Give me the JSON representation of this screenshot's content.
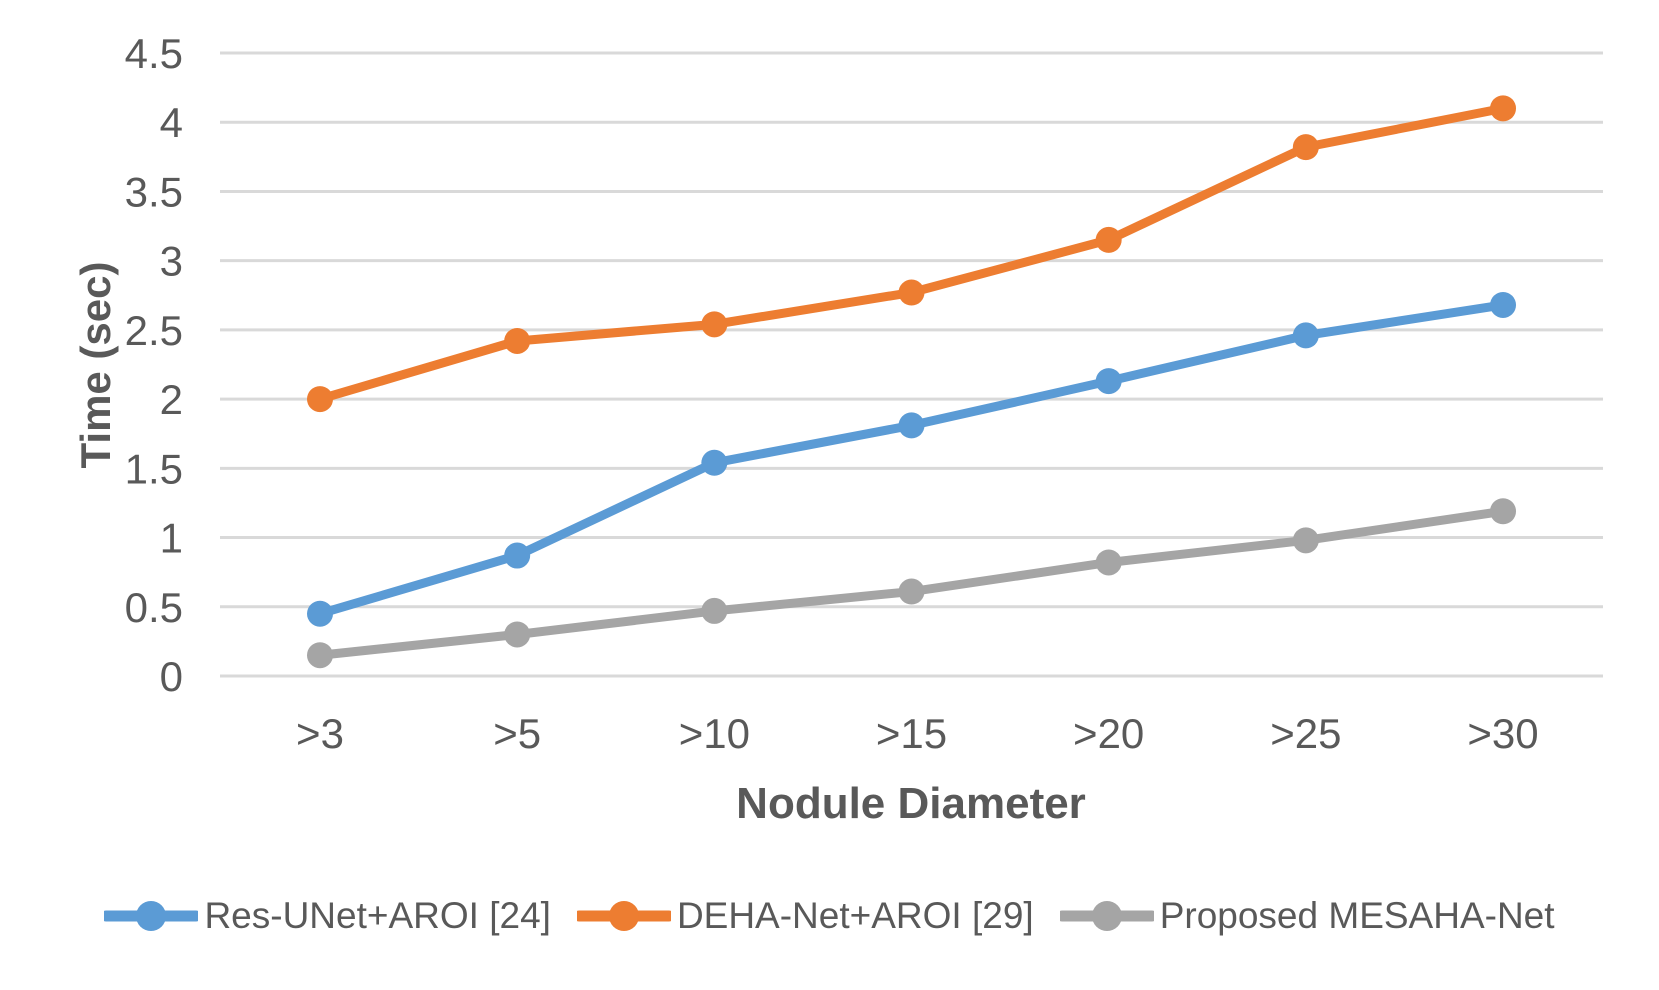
{
  "chart_data": {
    "type": "line",
    "title": "",
    "categories": [
      ">3",
      ">5",
      ">10",
      ">15",
      ">20",
      ">25",
      ">30"
    ],
    "series": [
      {
        "name": "Res-UNet+AROI [24]",
        "color": "#5B9BD5",
        "values": [
          0.45,
          0.87,
          1.54,
          1.81,
          2.13,
          2.46,
          2.68
        ]
      },
      {
        "name": "DEHA-Net+AROI [29]",
        "color": "#ED7D31",
        "values": [
          2.0,
          2.42,
          2.54,
          2.77,
          3.15,
          3.82,
          4.1
        ]
      },
      {
        "name": "Proposed MESAHA-Net",
        "color": "#A5A5A5",
        "values": [
          0.15,
          0.3,
          0.47,
          0.61,
          0.82,
          0.98,
          1.19
        ]
      }
    ],
    "xlabel": "Nodule Diameter",
    "ylabel": "Time (sec)",
    "ylim": [
      0,
      4.5
    ],
    "yticks": [
      "0",
      "0.5",
      "1",
      "1.5",
      "2",
      "2.5",
      "3",
      "3.5",
      "4",
      "4.5"
    ],
    "grid": "horizontal",
    "legend_position": "bottom",
    "marker": "circle",
    "colors": {
      "gridline": "#D9D9D9",
      "axis_line": "#D9D9D9",
      "tick_label": "#595959",
      "axis_title": "#595959",
      "legend_label": "#595959",
      "background": "#FFFFFF"
    }
  }
}
